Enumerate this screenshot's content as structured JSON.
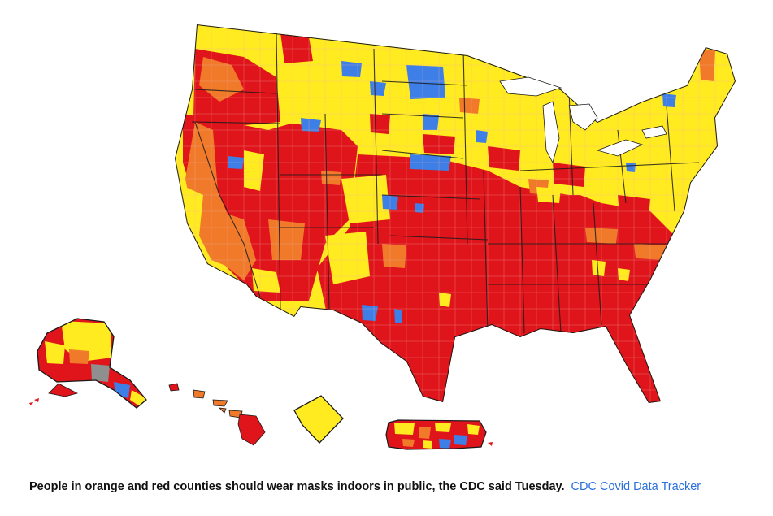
{
  "caption": {
    "text": "People in orange and red counties should wear masks indoors in public, the CDC said Tuesday.",
    "credit": "CDC Covid Data Tracker"
  },
  "map": {
    "subject": "US counties by CDC Covid-19 transmission level",
    "regions": [
      "contiguous-us",
      "alaska",
      "hawaii",
      "washington-dc-inset",
      "puerto-rico"
    ],
    "colors": {
      "high": "#e0141b",
      "substantial": "#f07a2a",
      "moderate": "#ffeb1f",
      "low": "#3d7fe6",
      "no-data": "#8f8f8f",
      "state-border": "#1a1a1a",
      "county-border": "#f2b0a8",
      "background": "#ffffff"
    }
  }
}
